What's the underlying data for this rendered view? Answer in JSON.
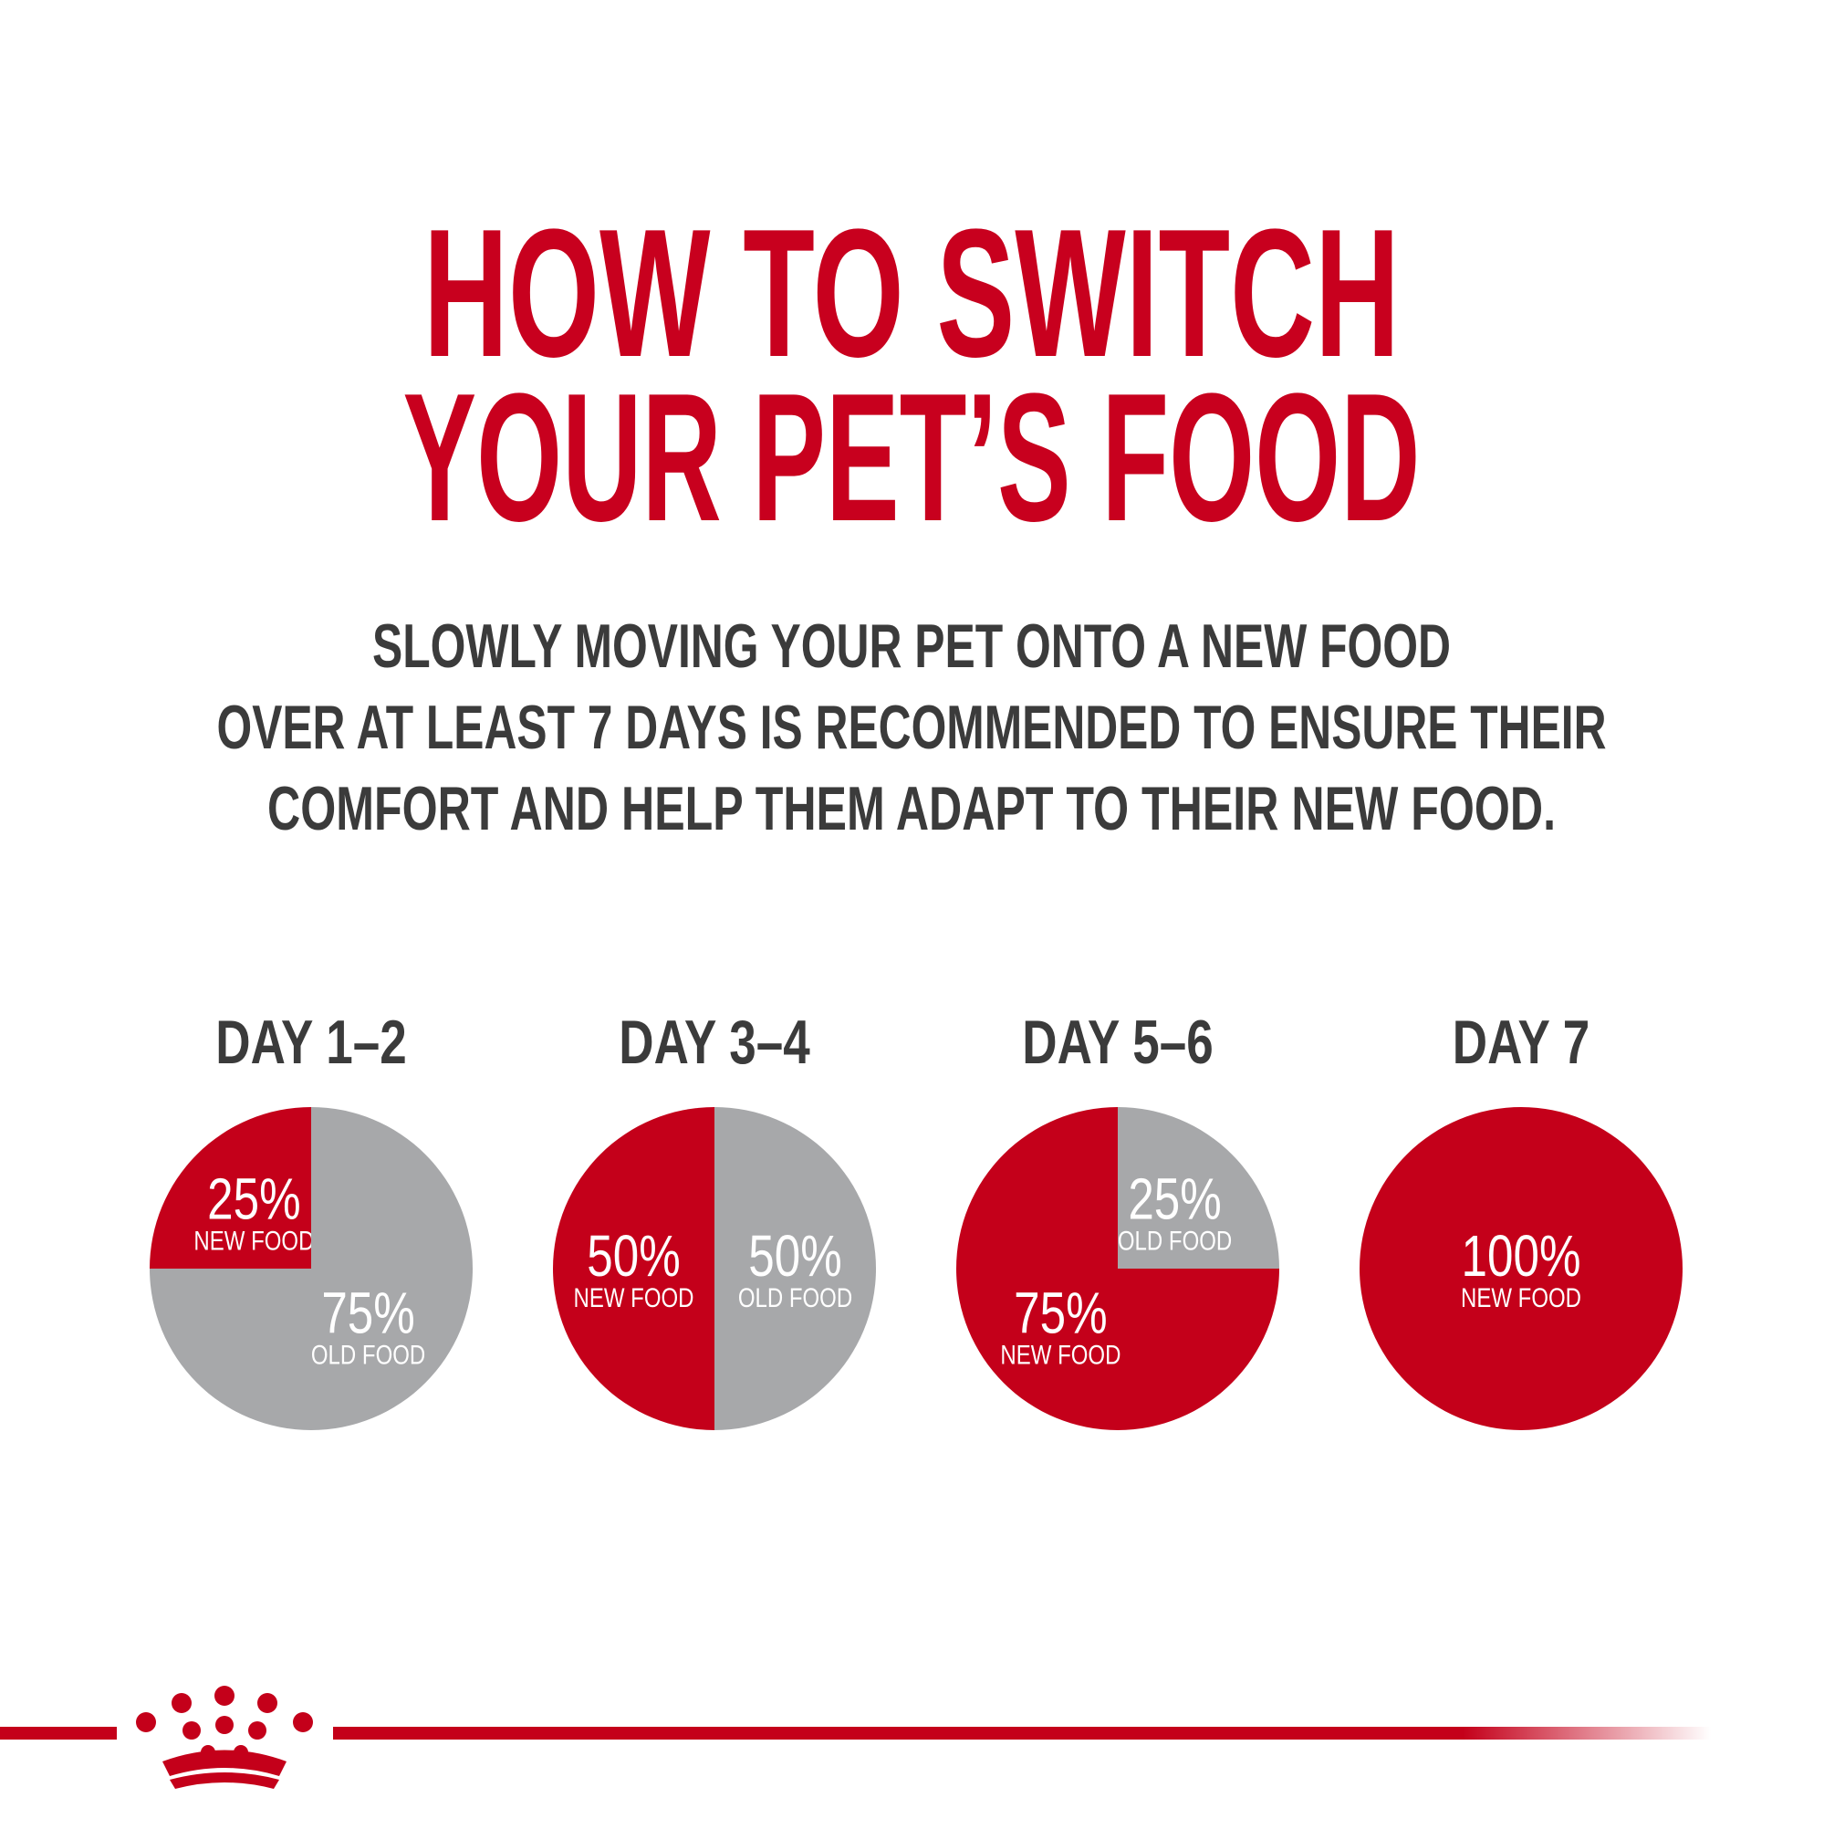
{
  "title_lines": [
    "HOW TO SWITCH",
    "YOUR PET’S FOOD"
  ],
  "subtitle_lines": [
    "SLOWLY MOVING YOUR PET ONTO A NEW FOOD",
    "OVER AT LEAST 7 DAYS IS RECOMMENDED TO ENSURE THEIR",
    "COMFORT AND HELP THEM ADAPT TO THEIR NEW FOOD."
  ],
  "chart_data": [
    {
      "type": "pie",
      "title": "DAY 1–2",
      "categories": [
        "NEW FOOD",
        "OLD FOOD"
      ],
      "values": [
        25,
        75
      ],
      "value_labels": [
        "25%",
        "75%"
      ],
      "colors": [
        "#c4001a",
        "#a7a8aa"
      ]
    },
    {
      "type": "pie",
      "title": "DAY 3–4",
      "categories": [
        "NEW FOOD",
        "OLD FOOD"
      ],
      "values": [
        50,
        50
      ],
      "value_labels": [
        "50%",
        "50%"
      ],
      "colors": [
        "#c4001a",
        "#a7a8aa"
      ]
    },
    {
      "type": "pie",
      "title": "DAY 5–6",
      "categories": [
        "NEW FOOD",
        "OLD FOOD"
      ],
      "values": [
        75,
        25
      ],
      "value_labels": [
        "75%",
        "25%"
      ],
      "colors": [
        "#c4001a",
        "#a7a8aa"
      ]
    },
    {
      "type": "pie",
      "title": "DAY 7",
      "categories": [
        "NEW FOOD"
      ],
      "values": [
        100
      ],
      "value_labels": [
        "100%"
      ],
      "colors": [
        "#c4001a"
      ]
    }
  ]
}
